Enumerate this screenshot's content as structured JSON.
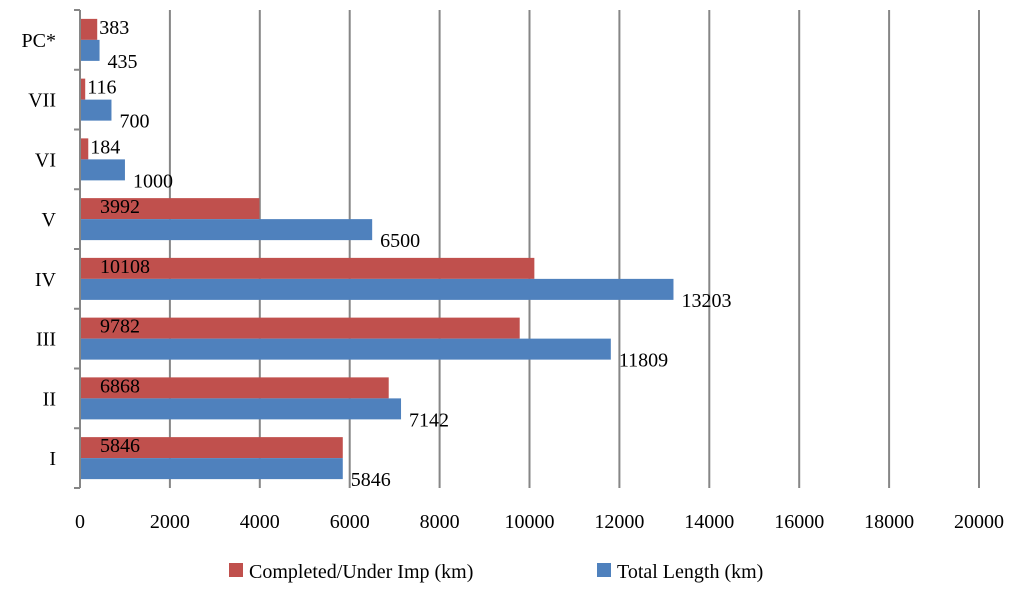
{
  "chart_data": {
    "type": "bar",
    "orientation": "horizontal",
    "categories": [
      "I",
      "II",
      "III",
      "IV",
      "V",
      "VI",
      "VII",
      "PC*"
    ],
    "series": [
      {
        "name": "Completed/Under Imp (km)",
        "color": "#C0504D",
        "values": [
          5846,
          6868,
          9782,
          10108,
          3992,
          184,
          116,
          383
        ]
      },
      {
        "name": "Total Length (km)",
        "color": "#4F81BD",
        "values": [
          5846,
          7142,
          11809,
          13203,
          6500,
          1000,
          700,
          435
        ]
      }
    ],
    "xlim": [
      0,
      20000
    ],
    "xticks": [
      0,
      2000,
      4000,
      6000,
      8000,
      10000,
      12000,
      14000,
      16000,
      18000,
      20000
    ],
    "grid": "vertical",
    "legend_position": "bottom",
    "title": "",
    "xlabel": "",
    "ylabel": ""
  }
}
